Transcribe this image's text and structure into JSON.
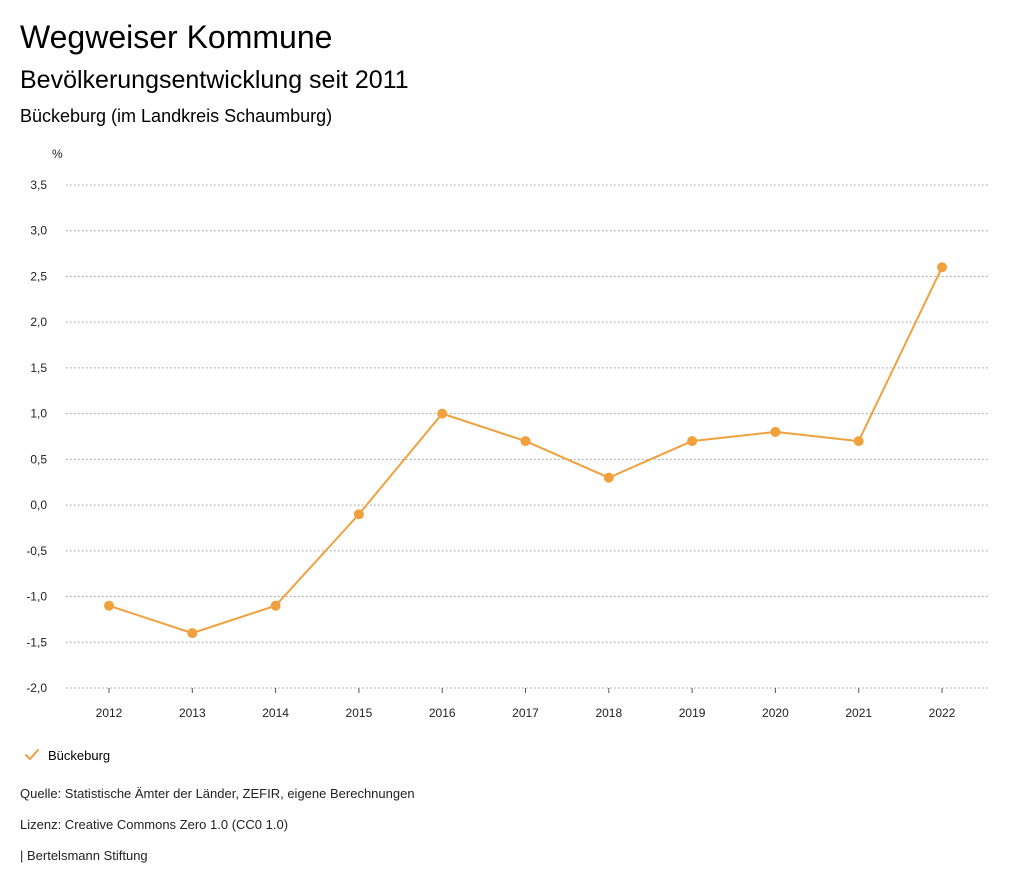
{
  "header": {
    "title": "Wegweiser Kommune",
    "subtitle": "Bevölkerungsentwicklung seit 2011",
    "region": "Bückeburg (im Landkreis Schaumburg)"
  },
  "chart_data": {
    "type": "line",
    "ylabel": "%",
    "ylim": [
      -2.0,
      3.5
    ],
    "yticks": [
      3.5,
      3.0,
      2.5,
      2.0,
      1.5,
      1.0,
      0.5,
      0.0,
      -0.5,
      -1.0,
      -1.5,
      -2.0
    ],
    "ytick_labels": [
      "3,5",
      "3,0",
      "2,5",
      "2,0",
      "1,5",
      "1,0",
      "0,5",
      "0,0",
      "-0,5",
      "-1,0",
      "-1,5",
      "-2,0"
    ],
    "categories": [
      "2012",
      "2013",
      "2014",
      "2015",
      "2016",
      "2017",
      "2018",
      "2019",
      "2020",
      "2021",
      "2022"
    ],
    "series": [
      {
        "name": "Bückeburg",
        "color": "#f0a13e",
        "values": [
          -1.1,
          -1.4,
          -1.1,
          -0.1,
          1.0,
          0.7,
          0.3,
          0.7,
          0.8,
          0.7,
          2.6
        ]
      }
    ],
    "grid": true,
    "legend": "bottom-left"
  },
  "legend": {
    "label": "Bückeburg"
  },
  "footer": {
    "source": "Quelle: Statistische Ämter der Länder, ZEFIR, eigene Berechnungen",
    "license": "Lizenz: Creative Commons Zero 1.0 (CC0 1.0)",
    "publisher": "| Bertelsmann Stiftung"
  }
}
